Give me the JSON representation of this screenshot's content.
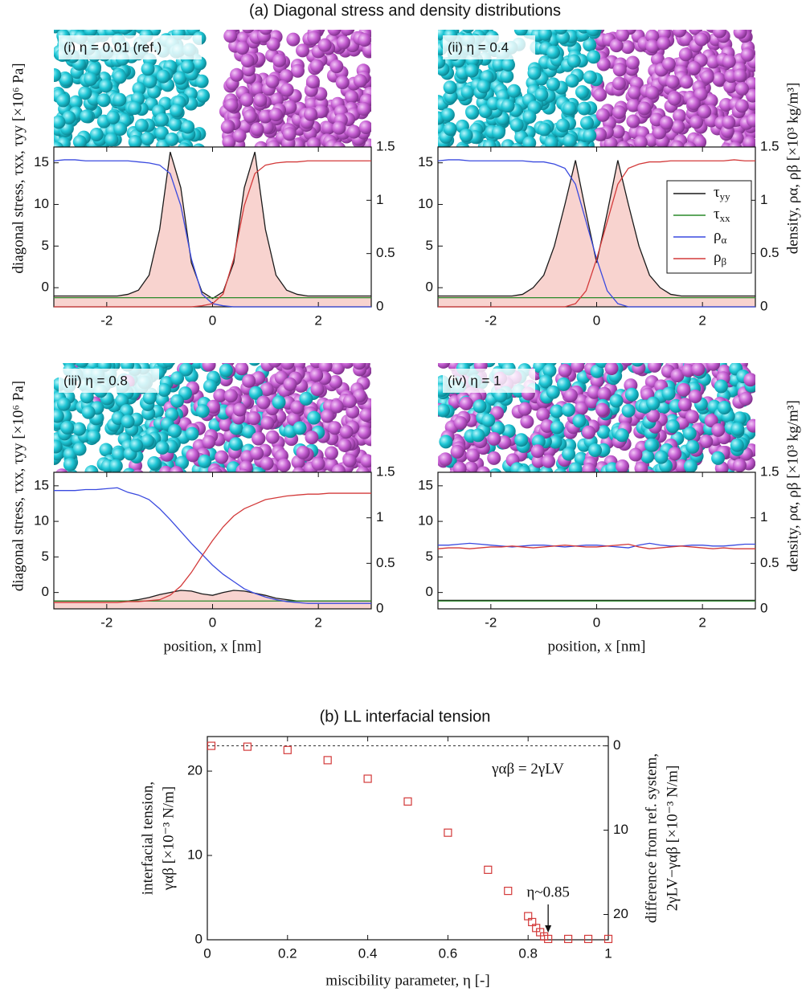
{
  "figure_title": "(a) Diagonal stress and density distributions",
  "chart_data": [
    {
      "type": "line",
      "label": "(i) η = 0.01 (ref.)",
      "ylabel": "diagonal stress, τxx, τyy [×10⁶ Pa]",
      "x": [
        -3,
        -2.8,
        -2.6,
        -2.4,
        -2.2,
        -2,
        -1.8,
        -1.6,
        -1.4,
        -1.2,
        -1,
        -0.8,
        -0.6,
        -0.4,
        -0.2,
        0,
        0.2,
        0.4,
        0.6,
        0.8,
        1,
        1.2,
        1.4,
        1.6,
        1.8,
        2,
        2.2,
        2.4,
        2.6,
        2.8,
        3
      ],
      "xlim": [
        -3,
        3
      ],
      "xticks": [
        -2,
        0,
        2
      ],
      "ylim": [
        -2.3,
        16.9
      ],
      "yticks": [
        0,
        5,
        10,
        15
      ],
      "y2lim": [
        0,
        1.5
      ],
      "y2ticks": [
        0,
        0.5,
        1,
        1.5
      ],
      "series": [
        {
          "color": "#1a1a1a",
          "fill": "#f8d3cf",
          "values": [
            -1,
            -1,
            -1,
            -1,
            -1,
            -1,
            -1,
            -0.8,
            -0.3,
            1.5,
            7,
            16.3,
            12,
            3,
            -0.5,
            -1.3,
            -0.5,
            3,
            12,
            16.3,
            7,
            1.5,
            -0.3,
            -0.8,
            -1,
            -1,
            -1,
            -1,
            -1,
            -1,
            -1
          ]
        },
        {
          "color": "#2a8a2a",
          "values": [
            -1.2,
            -1.2,
            -1.2,
            -1.2,
            -1.2,
            -1.2,
            -1.2,
            -1.2,
            -1.2,
            -1.2,
            -1.2,
            -1.2,
            -1.2,
            -1.2,
            -1.2,
            -1.2,
            -1.2,
            -1.2,
            -1.2,
            -1.2,
            -1.2,
            -1.2,
            -1.2,
            -1.2,
            -1.2,
            -1.2,
            -1.2,
            -1.2,
            -1.2,
            -1.2,
            -1.2
          ]
        },
        {
          "color": "#3a4adf",
          "axis": "y2",
          "values": [
            1.37,
            1.38,
            1.38,
            1.37,
            1.37,
            1.37,
            1.37,
            1.37,
            1.36,
            1.35,
            1.33,
            1.25,
            0.95,
            0.45,
            0.12,
            0.03,
            0.01,
            0,
            0,
            0,
            0,
            0,
            0,
            0,
            0,
            0,
            0,
            0,
            0,
            0,
            0
          ]
        },
        {
          "color": "#d33a3a",
          "axis": "y2",
          "values": [
            0,
            0,
            0,
            0,
            0,
            0,
            0,
            0,
            0,
            0,
            0,
            0,
            0,
            0,
            0.01,
            0.03,
            0.12,
            0.45,
            0.95,
            1.25,
            1.33,
            1.35,
            1.36,
            1.36,
            1.37,
            1.37,
            1.37,
            1.37,
            1.37,
            1.37,
            1.37
          ]
        }
      ]
    },
    {
      "type": "line",
      "label": "(ii) η = 0.4",
      "y2label": "density, ρα, ρβ [×10³ kg/m³]",
      "legend": "upper right",
      "x": [
        -3,
        -2.8,
        -2.6,
        -2.4,
        -2.2,
        -2,
        -1.8,
        -1.6,
        -1.4,
        -1.2,
        -1,
        -0.8,
        -0.6,
        -0.4,
        -0.2,
        0,
        0.2,
        0.4,
        0.6,
        0.8,
        1,
        1.2,
        1.4,
        1.6,
        1.8,
        2,
        2.2,
        2.4,
        2.6,
        2.8,
        3
      ],
      "xlim": [
        -3,
        3
      ],
      "xticks": [
        -2,
        0,
        2
      ],
      "ylim": [
        -2.3,
        16.9
      ],
      "yticks": [
        0,
        5,
        10,
        15
      ],
      "y2lim": [
        0,
        1.5
      ],
      "y2ticks": [
        0,
        0.5,
        1,
        1.5
      ],
      "series": [
        {
          "name": "τyy",
          "color": "#1a1a1a",
          "fill": "#f8d3cf",
          "values": [
            -1,
            -1,
            -1,
            -1,
            -1,
            -1,
            -1,
            -1,
            -0.8,
            0,
            1.5,
            5,
            10,
            15.3,
            9,
            3,
            9,
            15.3,
            10,
            5,
            1.5,
            0,
            -0.8,
            -1,
            -1,
            -1,
            -1,
            -1,
            -1,
            -1,
            -1
          ]
        },
        {
          "name": "τxx",
          "color": "#2a8a2a",
          "values": [
            -1.2,
            -1.2,
            -1.2,
            -1.2,
            -1.2,
            -1.2,
            -1.2,
            -1.2,
            -1.2,
            -1.2,
            -1.2,
            -1.2,
            -1.2,
            -1.2,
            -1.2,
            -1.2,
            -1.2,
            -1.2,
            -1.2,
            -1.2,
            -1.2,
            -1.2,
            -1.2,
            -1.2,
            -1.2,
            -1.2,
            -1.2,
            -1.2,
            -1.2,
            -1.2,
            -1.2
          ]
        },
        {
          "name": "ρα",
          "color": "#3a4adf",
          "axis": "y2",
          "values": [
            1.37,
            1.38,
            1.38,
            1.37,
            1.37,
            1.37,
            1.37,
            1.37,
            1.37,
            1.36,
            1.36,
            1.34,
            1.3,
            1.15,
            0.8,
            0.45,
            0.15,
            0.03,
            0,
            0,
            0,
            0,
            0,
            0,
            0,
            0,
            0,
            0,
            0,
            0,
            0
          ]
        },
        {
          "name": "ρβ",
          "color": "#d33a3a",
          "axis": "y2",
          "values": [
            0,
            0,
            0,
            0,
            0,
            0,
            0,
            0,
            0,
            0,
            0,
            0,
            0,
            0.03,
            0.15,
            0.45,
            0.8,
            1.15,
            1.3,
            1.34,
            1.36,
            1.36,
            1.37,
            1.37,
            1.37,
            1.37,
            1.37,
            1.37,
            1.38,
            1.37,
            1.37
          ]
        }
      ]
    },
    {
      "type": "line",
      "label": "(iii) η = 0.8",
      "ylabel": "diagonal stress, τxx, τyy [×10⁶ Pa]",
      "xlabel": "position, x [nm]",
      "x": [
        -3,
        -2.8,
        -2.6,
        -2.4,
        -2.2,
        -2,
        -1.8,
        -1.6,
        -1.4,
        -1.2,
        -1,
        -0.8,
        -0.6,
        -0.4,
        -0.2,
        0,
        0.2,
        0.4,
        0.6,
        0.8,
        1,
        1.2,
        1.4,
        1.6,
        1.8,
        2,
        2.2,
        2.4,
        2.6,
        2.8,
        3
      ],
      "xlim": [
        -3,
        3
      ],
      "xticks": [
        -2,
        0,
        2
      ],
      "ylim": [
        -2.3,
        16.9
      ],
      "yticks": [
        0,
        5,
        10,
        15
      ],
      "y2lim": [
        0,
        1.5
      ],
      "y2ticks": [
        0,
        0.5,
        1,
        1.5
      ],
      "series": [
        {
          "color": "#1a1a1a",
          "fill": "#f8d3cf",
          "values": [
            -1.2,
            -1.2,
            -1.2,
            -1.2,
            -1.2,
            -1.2,
            -1.2,
            -1.2,
            -1,
            -0.7,
            -0.3,
            0,
            0.3,
            0.2,
            -0.2,
            -0.4,
            0,
            0.3,
            0.2,
            -0.1,
            -0.4,
            -0.8,
            -1,
            -1.2,
            -1.2,
            -1.2,
            -1.2,
            -1.2,
            -1.2,
            -1.2,
            -1.2
          ]
        },
        {
          "color": "#2a8a2a",
          "values": [
            -1.2,
            -1.2,
            -1.2,
            -1.2,
            -1.2,
            -1.2,
            -1.2,
            -1.2,
            -1.2,
            -1.2,
            -1.2,
            -1.2,
            -1.2,
            -1.2,
            -1.2,
            -1.2,
            -1.2,
            -1.2,
            -1.2,
            -1.2,
            -1.2,
            -1.2,
            -1.2,
            -1.2,
            -1.2,
            -1.2,
            -1.2,
            -1.2,
            -1.2,
            -1.2,
            -1.2
          ]
        },
        {
          "color": "#3a4adf",
          "axis": "y2",
          "values": [
            1.3,
            1.3,
            1.3,
            1.31,
            1.31,
            1.32,
            1.33,
            1.28,
            1.25,
            1.2,
            1.1,
            0.98,
            0.85,
            0.72,
            0.6,
            0.48,
            0.38,
            0.3,
            0.22,
            0.17,
            0.13,
            0.1,
            0.08,
            0.07,
            0.06,
            0.06,
            0.06,
            0.06,
            0.06,
            0.06,
            0.06
          ]
        },
        {
          "color": "#d33a3a",
          "axis": "y2",
          "values": [
            0.07,
            0.07,
            0.07,
            0.07,
            0.07,
            0.07,
            0.07,
            0.08,
            0.08,
            0.09,
            0.1,
            0.15,
            0.25,
            0.4,
            0.58,
            0.75,
            0.9,
            1.02,
            1.1,
            1.15,
            1.2,
            1.22,
            1.24,
            1.25,
            1.26,
            1.26,
            1.27,
            1.27,
            1.27,
            1.27,
            1.27
          ]
        }
      ]
    },
    {
      "type": "line",
      "label": "(iv) η = 1",
      "y2label": "density, ρα, ρβ [×10³ kg/m³]",
      "xlabel": "position, x [nm]",
      "x": [
        -3,
        -2.8,
        -2.6,
        -2.4,
        -2.2,
        -2,
        -1.8,
        -1.6,
        -1.4,
        -1.2,
        -1,
        -0.8,
        -0.6,
        -0.4,
        -0.2,
        0,
        0.2,
        0.4,
        0.6,
        0.8,
        1,
        1.2,
        1.4,
        1.6,
        1.8,
        2,
        2.2,
        2.4,
        2.6,
        2.8,
        3
      ],
      "xlim": [
        -3,
        3
      ],
      "xticks": [
        -2,
        0,
        2
      ],
      "ylim": [
        -2.3,
        16.9
      ],
      "yticks": [
        0,
        5,
        10,
        15
      ],
      "y2lim": [
        0,
        1.5
      ],
      "y2ticks": [
        0,
        0.5,
        1,
        1.5
      ],
      "series": [
        {
          "color": "#1a1a1a",
          "values": [
            -1.1,
            -1.1,
            -1.1,
            -1.1,
            -1.1,
            -1.1,
            -1.1,
            -1.1,
            -1.1,
            -1.1,
            -1.1,
            -1.1,
            -1.1,
            -1.1,
            -1.1,
            -1.1,
            -1.1,
            -1.1,
            -1.1,
            -1.1,
            -1.1,
            -1.1,
            -1.1,
            -1.1,
            -1.1,
            -1.1,
            -1.1,
            -1.1,
            -1.1,
            -1.1,
            -1.1
          ]
        },
        {
          "color": "#2a8a2a",
          "values": [
            -1.2,
            -1.2,
            -1.2,
            -1.2,
            -1.2,
            -1.2,
            -1.2,
            -1.2,
            -1.2,
            -1.2,
            -1.2,
            -1.2,
            -1.2,
            -1.2,
            -1.2,
            -1.2,
            -1.2,
            -1.2,
            -1.2,
            -1.2,
            -1.2,
            -1.2,
            -1.2,
            -1.2,
            -1.2,
            -1.2,
            -1.2,
            -1.2,
            -1.2,
            -1.2,
            -1.2
          ]
        },
        {
          "color": "#3a4adf",
          "axis": "y2",
          "values": [
            0.7,
            0.7,
            0.71,
            0.72,
            0.71,
            0.7,
            0.69,
            0.68,
            0.69,
            0.7,
            0.7,
            0.69,
            0.68,
            0.69,
            0.7,
            0.7,
            0.69,
            0.68,
            0.67,
            0.7,
            0.72,
            0.7,
            0.69,
            0.69,
            0.7,
            0.7,
            0.69,
            0.69,
            0.7,
            0.71,
            0.71
          ]
        },
        {
          "color": "#d33a3a",
          "axis": "y2",
          "values": [
            0.66,
            0.67,
            0.67,
            0.66,
            0.67,
            0.68,
            0.68,
            0.69,
            0.68,
            0.67,
            0.68,
            0.69,
            0.7,
            0.69,
            0.68,
            0.68,
            0.69,
            0.7,
            0.71,
            0.68,
            0.66,
            0.67,
            0.68,
            0.69,
            0.68,
            0.67,
            0.66,
            0.67,
            0.66,
            0.66,
            0.66
          ]
        }
      ]
    },
    {
      "type": "scatter",
      "title": "(b) LL interfacial tension",
      "xlabel": "miscibility parameter, η [-]",
      "ylabel": [
        "interfacial tension,",
        "γαβ [×10⁻³ N/m]"
      ],
      "y2label": [
        "difference from ref. system,",
        "2γLV−γαβ [×10⁻³ N/m]"
      ],
      "x": [
        0.01,
        0.1,
        0.2,
        0.3,
        0.4,
        0.5,
        0.6,
        0.7,
        0.75,
        0.8,
        0.81,
        0.82,
        0.83,
        0.84,
        0.85,
        0.9,
        0.95,
        1.0
      ],
      "values": [
        23,
        22.9,
        22.5,
        21.3,
        19.1,
        16.4,
        12.7,
        8.3,
        5.8,
        2.8,
        2.1,
        1.4,
        0.9,
        0.4,
        0.1,
        0.1,
        0.1,
        0.1
      ],
      "color": "#d33a3a",
      "xlim": [
        0,
        1
      ],
      "xticks": [
        0,
        0.2,
        0.4,
        0.6,
        0.8,
        1
      ],
      "ylim": [
        0,
        24.1
      ],
      "yticks": [
        0,
        10,
        20
      ],
      "y2lim": [
        23,
        -1.1
      ],
      "y2ticks": [
        0,
        10,
        20
      ],
      "reference_line": {
        "value": 23,
        "label": "γαβ = 2γLV"
      },
      "annotation": {
        "text": "η~0.85",
        "x": 0.85
      }
    }
  ]
}
